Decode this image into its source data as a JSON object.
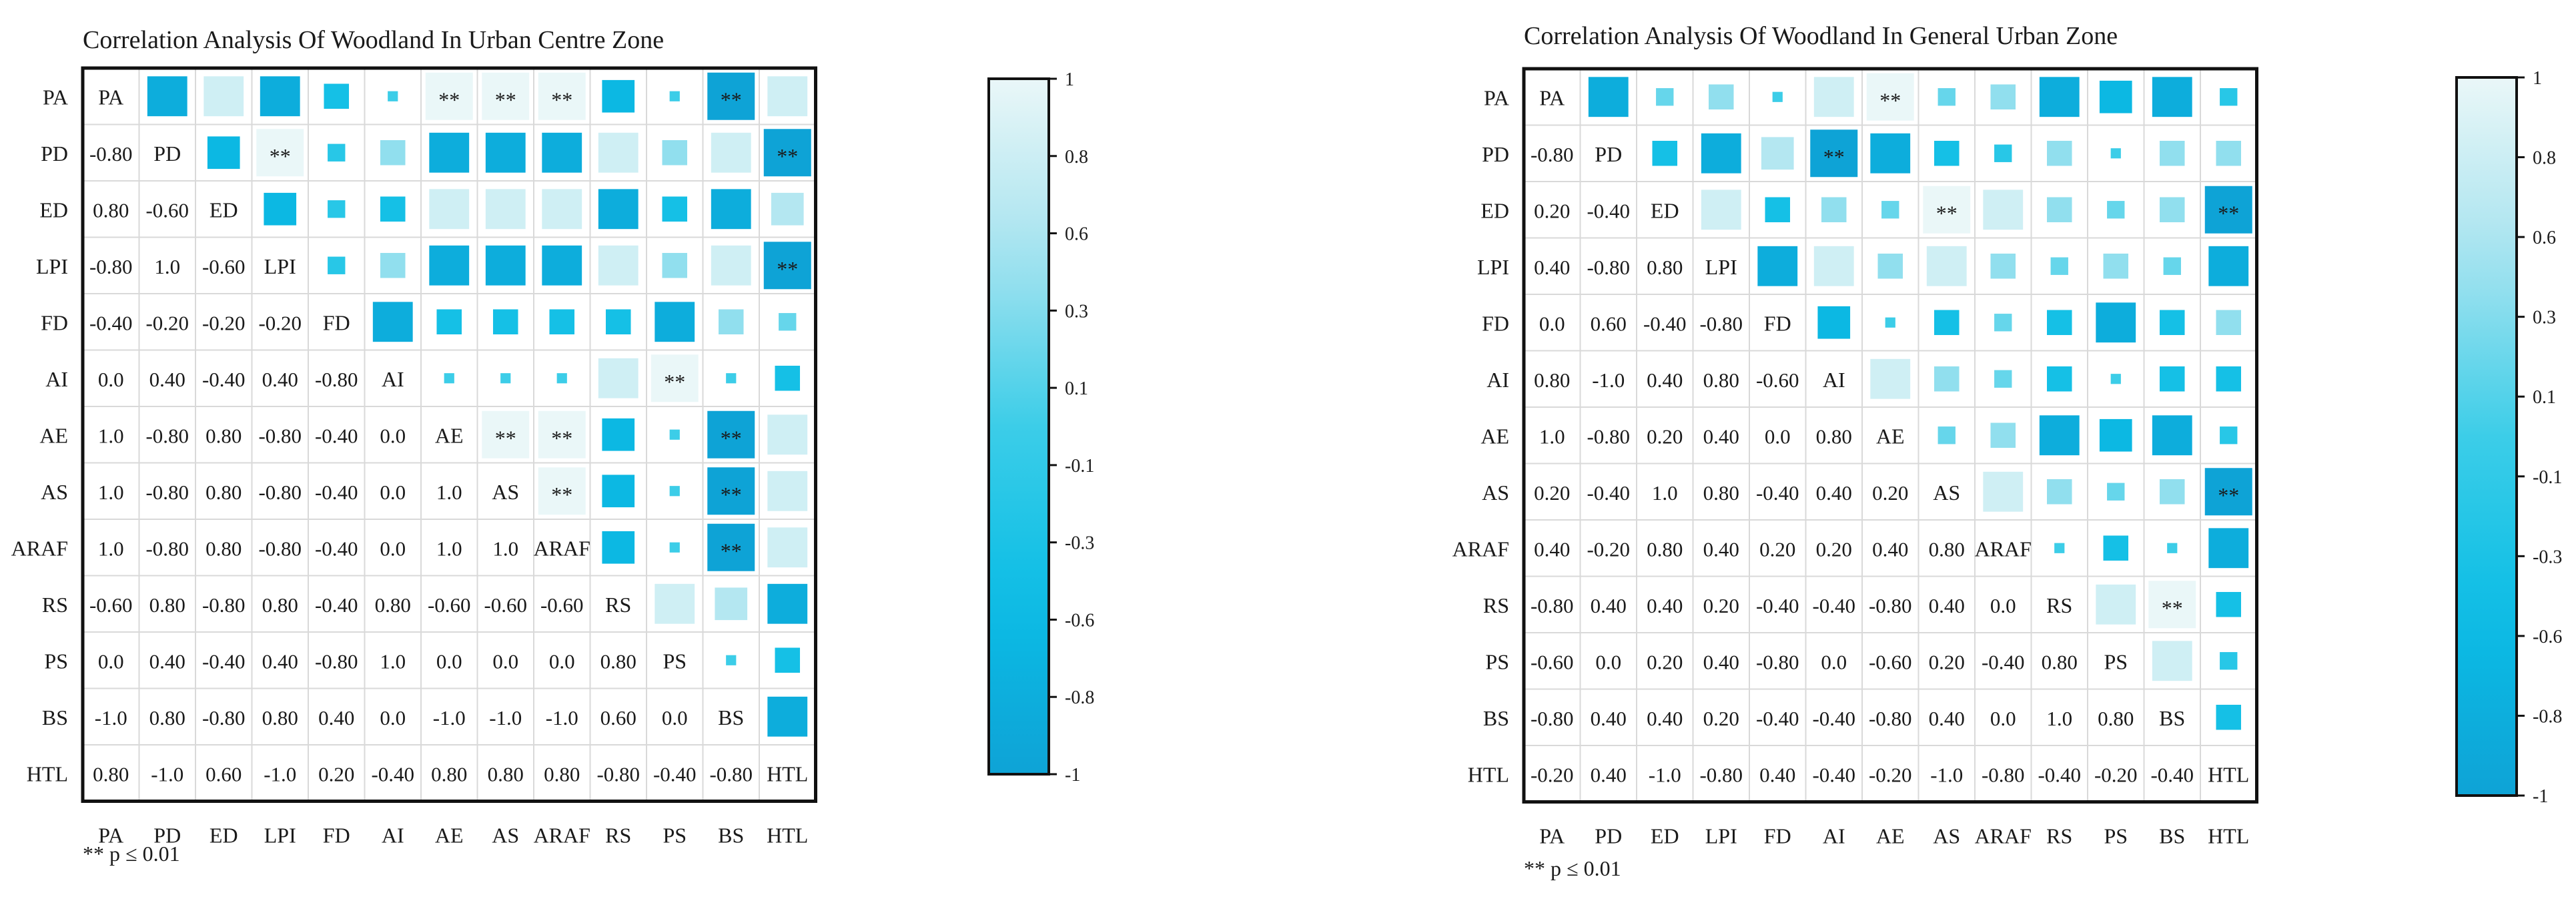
{
  "chart_data": [
    {
      "type": "heatmap",
      "title": "Correlation Analysis Of Woodland In Urban Centre Zone",
      "variables": [
        "PA",
        "PD",
        "ED",
        "LPI",
        "FD",
        "AI",
        "AE",
        "AS",
        "ARAF",
        "RS",
        "PS",
        "BS",
        "HTL"
      ],
      "lower_values": [
        [],
        [
          "-0.80"
        ],
        [
          "0.80",
          "-0.60"
        ],
        [
          "-0.80",
          "1.0",
          "-0.60"
        ],
        [
          "-0.40",
          "-0.20",
          "-0.20",
          "-0.20"
        ],
        [
          "0.0",
          "0.40",
          "-0.40",
          "0.40",
          "-0.80"
        ],
        [
          "1.0",
          "-0.80",
          "0.80",
          "-0.80",
          "-0.40",
          "0.0"
        ],
        [
          "1.0",
          "-0.80",
          "0.80",
          "-0.80",
          "-0.40",
          "0.0",
          "1.0"
        ],
        [
          "1.0",
          "-0.80",
          "0.80",
          "-0.80",
          "-0.40",
          "0.0",
          "1.0",
          "1.0"
        ],
        [
          "-0.60",
          "0.80",
          "-0.80",
          "0.80",
          "-0.40",
          "0.80",
          "-0.60",
          "-0.60",
          "-0.60"
        ],
        [
          "0.0",
          "0.40",
          "-0.40",
          "0.40",
          "-0.80",
          "1.0",
          "0.0",
          "0.0",
          "0.0",
          "0.80"
        ],
        [
          "-1.0",
          "0.80",
          "-0.80",
          "0.80",
          "0.40",
          "0.0",
          "-1.0",
          "-1.0",
          "-1.0",
          "0.60",
          "0.0"
        ],
        [
          "0.80",
          "-1.0",
          "0.60",
          "-1.0",
          "0.20",
          "-0.40",
          "0.80",
          "0.80",
          "0.80",
          "-0.80",
          "-0.40",
          "-0.80"
        ]
      ],
      "significance_marker": "**",
      "significant_cells": [
        [
          0,
          6
        ],
        [
          0,
          7
        ],
        [
          0,
          8
        ],
        [
          0,
          11
        ],
        [
          1,
          3
        ],
        [
          1,
          12
        ],
        [
          3,
          12
        ],
        [
          5,
          10
        ],
        [
          6,
          7
        ],
        [
          6,
          8
        ],
        [
          6,
          11
        ],
        [
          7,
          8
        ],
        [
          7,
          11
        ],
        [
          8,
          11
        ]
      ],
      "legend_note": "** p ≤ 0.01",
      "colorbar_ticks": [
        "1",
        "0.8",
        "0.6",
        "0.3",
        "0.1",
        "-0.1",
        "-0.3",
        "-0.6",
        "-0.8",
        "-1"
      ],
      "value_range": [
        -1,
        1
      ]
    },
    {
      "type": "heatmap",
      "title": "Correlation Analysis Of Woodland In General Urban Zone",
      "variables": [
        "PA",
        "PD",
        "ED",
        "LPI",
        "FD",
        "AI",
        "AE",
        "AS",
        "ARAF",
        "RS",
        "PS",
        "BS",
        "HTL"
      ],
      "lower_values": [
        [],
        [
          "-0.80"
        ],
        [
          "0.20",
          "-0.40"
        ],
        [
          "0.40",
          "-0.80",
          "0.80"
        ],
        [
          "0.0",
          "0.60",
          "-0.40",
          "-0.80"
        ],
        [
          "0.80",
          "-1.0",
          "0.40",
          "0.80",
          "-0.60"
        ],
        [
          "1.0",
          "-0.80",
          "0.20",
          "0.40",
          "0.0",
          "0.80"
        ],
        [
          "0.20",
          "-0.40",
          "1.0",
          "0.80",
          "-0.40",
          "0.40",
          "0.20"
        ],
        [
          "0.40",
          "-0.20",
          "0.80",
          "0.40",
          "0.20",
          "0.20",
          "0.40",
          "0.80"
        ],
        [
          "-0.80",
          "0.40",
          "0.40",
          "0.20",
          "-0.40",
          "-0.40",
          "-0.80",
          "0.40",
          "0.0"
        ],
        [
          "-0.60",
          "0.0",
          "0.20",
          "0.40",
          "-0.80",
          "0.0",
          "-0.60",
          "0.20",
          "-0.40",
          "0.80"
        ],
        [
          "-0.80",
          "0.40",
          "0.40",
          "0.20",
          "-0.40",
          "-0.40",
          "-0.80",
          "0.40",
          "0.0",
          "1.0",
          "0.80"
        ],
        [
          "-0.20",
          "0.40",
          "-1.0",
          "-0.80",
          "0.40",
          "-0.40",
          "-0.20",
          "-1.0",
          "-0.80",
          "-0.40",
          "-0.20",
          "-0.40"
        ]
      ],
      "significance_marker": "**",
      "significant_cells": [
        [
          0,
          6
        ],
        [
          1,
          5
        ],
        [
          2,
          7
        ],
        [
          2,
          12
        ],
        [
          7,
          12
        ],
        [
          9,
          11
        ]
      ],
      "legend_note": "** p ≤ 0.01",
      "colorbar_ticks": [
        "1",
        "0.8",
        "0.6",
        "0.3",
        "0.1",
        "-0.1",
        "-0.3",
        "-0.6",
        "-0.8",
        "-1"
      ],
      "value_range": [
        -1,
        1
      ]
    }
  ]
}
